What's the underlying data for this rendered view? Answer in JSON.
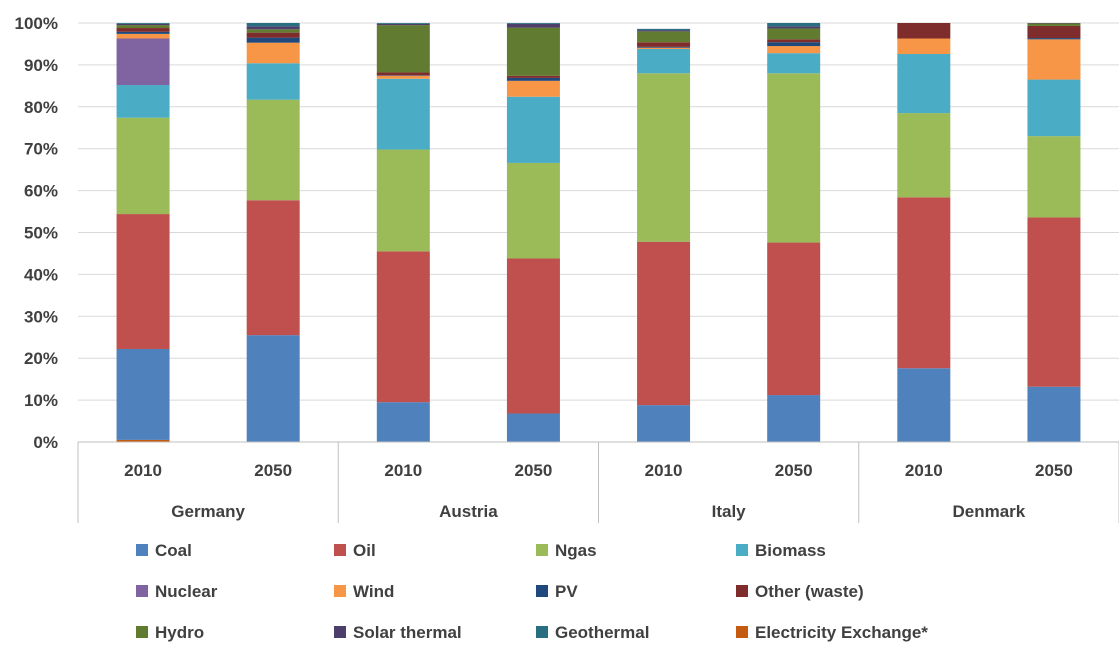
{
  "chart_data": {
    "type": "bar",
    "stacked": true,
    "percent": true,
    "ylim": [
      0,
      100
    ],
    "yticks": [
      "0%",
      "10%",
      "20%",
      "30%",
      "40%",
      "50%",
      "60%",
      "70%",
      "80%",
      "90%",
      "100%"
    ],
    "grid": true,
    "legend_position": "bottom",
    "groups": [
      {
        "label": "Germany",
        "categories": [
          "2010",
          "2050"
        ]
      },
      {
        "label": "Austria",
        "categories": [
          "2010",
          "2050"
        ]
      },
      {
        "label": "Italy",
        "categories": [
          "2010",
          "2050"
        ]
      },
      {
        "label": "Denmark",
        "categories": [
          "2010",
          "2050"
        ]
      }
    ],
    "series": [
      {
        "name": "Electricity Exchange*",
        "color": "#c55a11",
        "values": [
          0.5,
          0,
          0,
          0,
          0,
          0,
          0,
          0
        ]
      },
      {
        "name": "Coal",
        "color": "#4f81bd",
        "values": [
          21.7,
          25.5,
          9.5,
          6.8,
          8.8,
          11.2,
          17.6,
          13.2
        ]
      },
      {
        "name": "Oil",
        "color": "#c0504d",
        "values": [
          32.2,
          32.2,
          36,
          37,
          39,
          36.4,
          40.8,
          40.4
        ]
      },
      {
        "name": "Ngas",
        "color": "#9bbb59",
        "values": [
          23,
          24,
          24.3,
          22.8,
          40.2,
          40.4,
          20.1,
          19.4
        ]
      },
      {
        "name": "Biomass",
        "color": "#4bacc6",
        "values": [
          7.8,
          8.7,
          16.9,
          15.8,
          5.8,
          4.8,
          14.1,
          13.5
        ]
      },
      {
        "name": "Nuclear",
        "color": "#8064a2",
        "values": [
          11.1,
          0,
          0,
          0,
          0,
          0,
          0,
          0
        ]
      },
      {
        "name": "Wind",
        "color": "#f79646",
        "values": [
          1.1,
          4.9,
          0.7,
          3.8,
          0.3,
          1.7,
          3.7,
          9.6
        ]
      },
      {
        "name": "PV",
        "color": "#1f497d",
        "values": [
          0.5,
          1.2,
          0.1,
          0.7,
          0.2,
          0.9,
          0,
          0.3
        ]
      },
      {
        "name": "Other (waste)",
        "color": "#7f2c2c",
        "values": [
          0.9,
          1.2,
          0.7,
          0.5,
          1.1,
          0.7,
          3.7,
          2.9
        ]
      },
      {
        "name": "Hydro",
        "color": "#617b31",
        "values": [
          0.7,
          0.8,
          11.3,
          11.5,
          2.6,
          2.6,
          0,
          0.6
        ]
      },
      {
        "name": "Solar thermal",
        "color": "#4d3e6b",
        "values": [
          0.3,
          0.7,
          0.3,
          0.9,
          0.3,
          0.5,
          0,
          0.1
        ]
      },
      {
        "name": "Geothermal",
        "color": "#286f82",
        "values": [
          0.2,
          0.8,
          0.2,
          0.2,
          0.3,
          0.8,
          0,
          0
        ]
      }
    ],
    "legend_order": [
      "Coal",
      "Oil",
      "Ngas",
      "Biomass",
      "Nuclear",
      "Wind",
      "PV",
      "Other (waste)",
      "Hydro",
      "Solar thermal",
      "Geothermal",
      "Electricity Exchange*"
    ]
  }
}
